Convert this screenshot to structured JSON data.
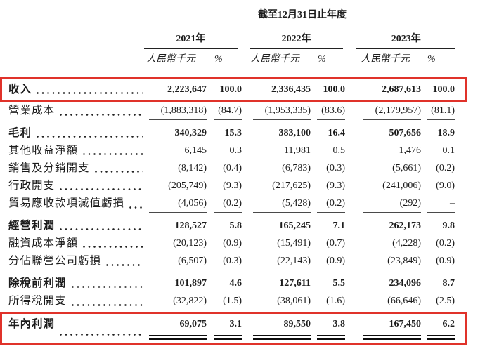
{
  "table": {
    "title": "截至12月31日止年度",
    "years": [
      "2021年",
      "2022年",
      "2023年"
    ],
    "unit_header": "人民幣千元",
    "pct_header": "%",
    "highlight_color": "#e0322a",
    "rows": [
      {
        "label": "收入",
        "bold": true,
        "highlight": true,
        "values": [
          "2,223,647",
          "100.0",
          "2,336,435",
          "100.0",
          "2,687,613",
          "100.0"
        ]
      },
      {
        "label": "營業成本",
        "rule_below": true,
        "values": [
          "(1,883,318)",
          "(84.7)",
          "(1,953,335)",
          "(83.6)",
          "(2,179,957)",
          "(81.1)"
        ]
      },
      {
        "label": "毛利",
        "bold": true,
        "subtotal": true,
        "values": [
          "340,329",
          "15.3",
          "383,100",
          "16.4",
          "507,656",
          "18.9"
        ]
      },
      {
        "label": "其他收益淨額",
        "values": [
          "6,145",
          "0.3",
          "11,981",
          "0.5",
          "1,476",
          "0.1"
        ]
      },
      {
        "label": "銷售及分銷開支",
        "values": [
          "(8,142)",
          "(0.4)",
          "(6,783)",
          "(0.3)",
          "(5,661)",
          "(0.2)"
        ]
      },
      {
        "label": "行政開支",
        "values": [
          "(205,749)",
          "(9.3)",
          "(217,625)",
          "(9.3)",
          "(241,006)",
          "(9.0)"
        ]
      },
      {
        "label": "貿易應收款項減值虧損",
        "rule_below": true,
        "values": [
          "(4,056)",
          "(0.2)",
          "(5,428)",
          "(0.2)",
          "(292)",
          "–"
        ]
      },
      {
        "label": "經營利潤",
        "bold": true,
        "subtotal": true,
        "values": [
          "128,527",
          "5.8",
          "165,245",
          "7.1",
          "262,173",
          "9.8"
        ]
      },
      {
        "label": "融資成本淨額",
        "values": [
          "(20,123)",
          "(0.9)",
          "(15,491)",
          "(0.7)",
          "(4,228)",
          "(0.2)"
        ]
      },
      {
        "label": "分佔聯營公司虧損",
        "rule_below": true,
        "values": [
          "(6,507)",
          "(0.3)",
          "(22,143)",
          "(0.9)",
          "(23,849)",
          "(0.9)"
        ]
      },
      {
        "label": "除稅前利潤",
        "bold": true,
        "subtotal": true,
        "values": [
          "101,897",
          "4.6",
          "127,611",
          "5.5",
          "234,096",
          "8.7"
        ]
      },
      {
        "label": "所得稅開支",
        "rule_below": true,
        "values": [
          "(32,822)",
          "(1.5)",
          "(38,061)",
          "(1.6)",
          "(66,646)",
          "(2.5)"
        ]
      },
      {
        "label": "年內利潤",
        "bold": true,
        "highlight": true,
        "double_rule": true,
        "subtotal": true,
        "values": [
          "69,075",
          "3.1",
          "89,550",
          "3.8",
          "167,450",
          "6.2"
        ]
      }
    ]
  }
}
